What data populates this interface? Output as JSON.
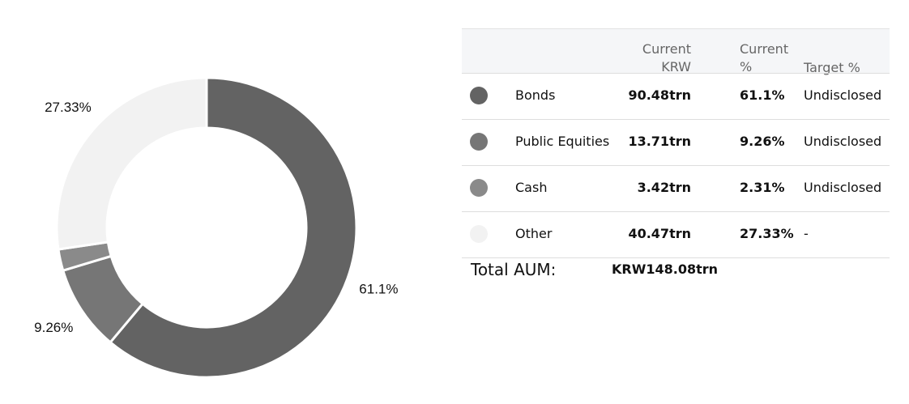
{
  "chart_data": {
    "type": "pie",
    "donut": true,
    "categories": [
      "Bonds",
      "Public Equities",
      "Cash",
      "Other"
    ],
    "values": [
      61.1,
      9.26,
      2.31,
      27.33
    ],
    "value_labels": [
      "61.1%",
      "9.26%",
      null,
      "27.33%"
    ],
    "colors": [
      "#636363",
      "#767676",
      "#8a8a8a",
      "#f2f2f2"
    ]
  },
  "table": {
    "columns": [
      "Current KRW",
      "Current %",
      "Target %"
    ],
    "rows": [
      [
        "Bonds",
        "90.48trn",
        "61.1%",
        "Undisclosed"
      ],
      [
        "Public Equities",
        "13.71trn",
        "9.26%",
        "Undisclosed"
      ],
      [
        "Cash",
        "3.42trn",
        "2.31%",
        "Undisclosed"
      ],
      [
        "Other",
        "40.47trn",
        "27.33%",
        "-"
      ]
    ],
    "total_label": "Total AUM:",
    "total_value": "KRW148.08trn"
  }
}
